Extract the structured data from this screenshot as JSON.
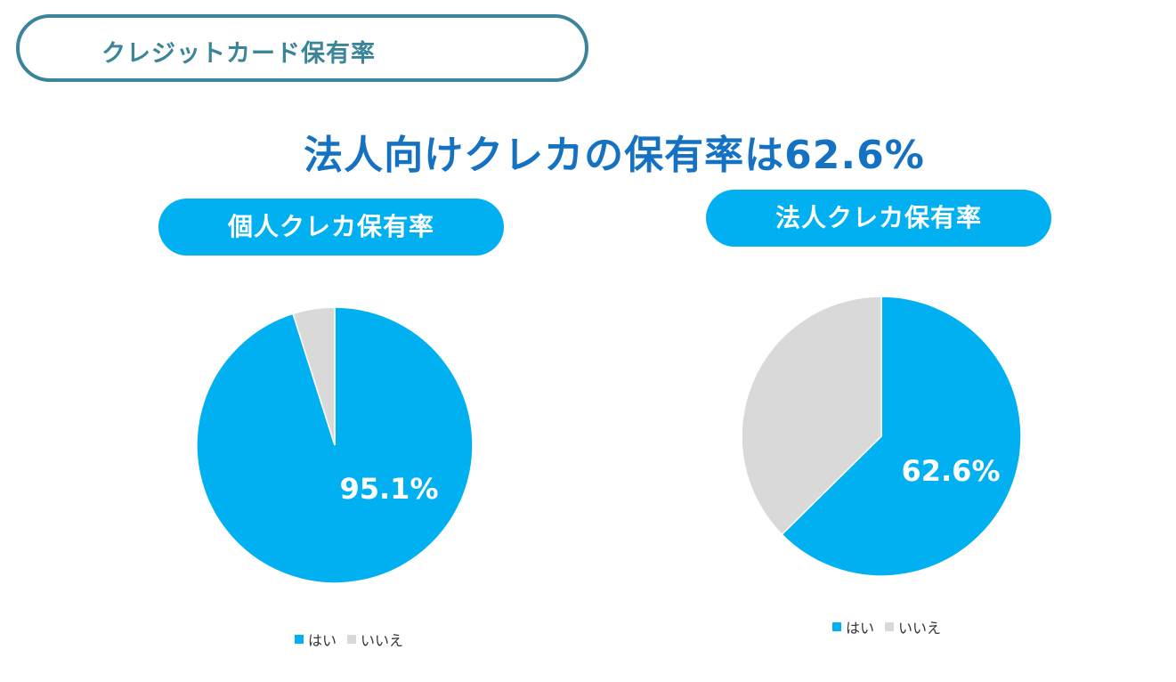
{
  "section_title": "クレジットカード保有率",
  "headline": "法人向けクレカの保有率は62.6%",
  "colors": {
    "yes": "#00b0f0",
    "no": "#d9d9d9",
    "section": "#3a8599",
    "headline": "#1572c2"
  },
  "chart_data": [
    {
      "type": "pie",
      "title": "個人クレカ保有率",
      "labels": [
        "はい",
        "いいえ"
      ],
      "values": [
        95.1,
        4.9
      ],
      "data_label": "95.1%",
      "legend": "bottom"
    },
    {
      "type": "pie",
      "title": "法人クレカ保有率",
      "labels": [
        "はい",
        "いいえ"
      ],
      "values": [
        62.6,
        37.4
      ],
      "data_label": "62.6%",
      "legend": "bottom"
    }
  ]
}
